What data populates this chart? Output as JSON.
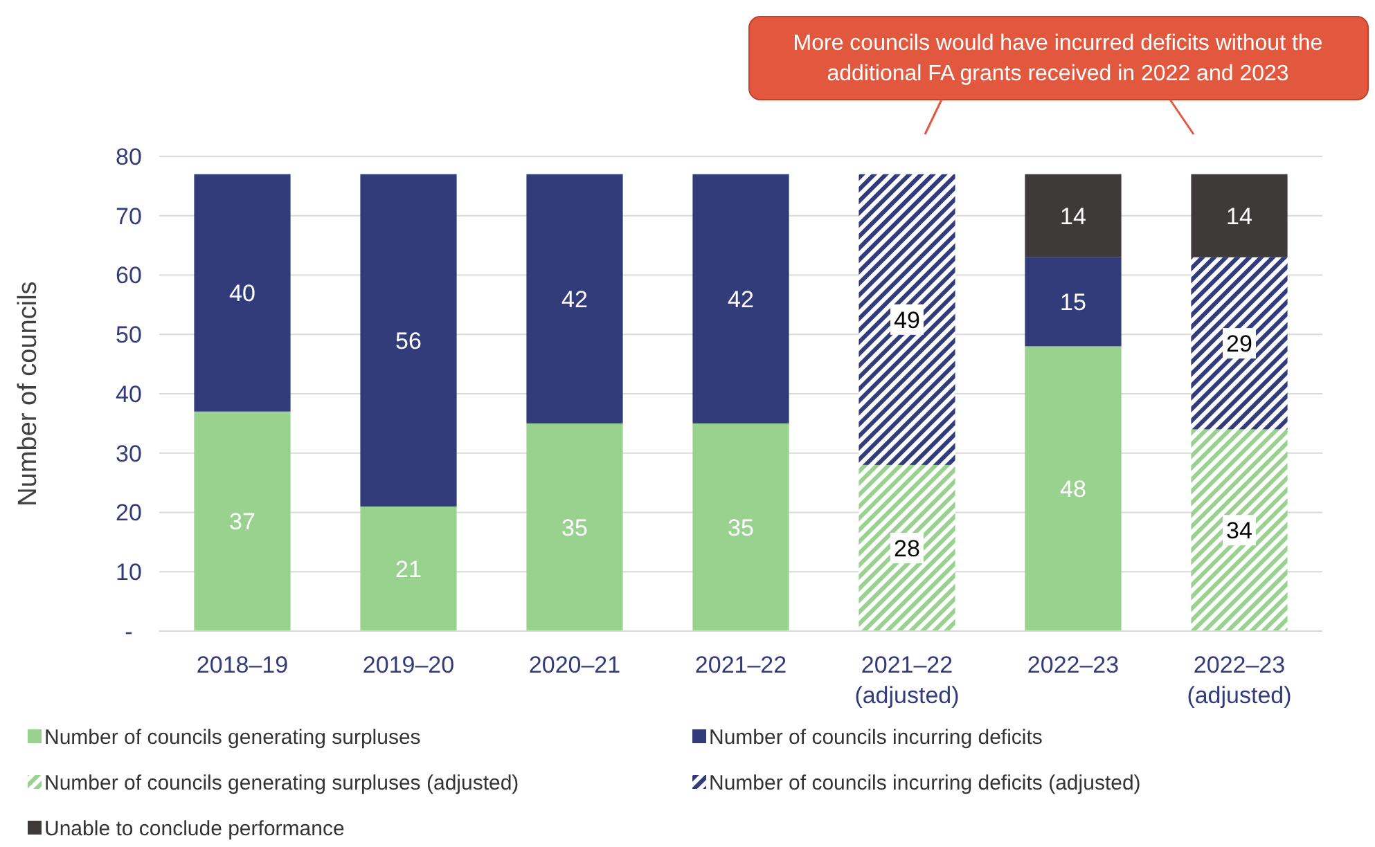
{
  "chart_data": {
    "type": "bar",
    "stacked": true,
    "ylabel": "Number of councils",
    "categories": [
      "2018–19",
      "2019–20",
      "2020–21",
      "2021–22",
      "2021–22\n(adjusted)",
      "2022–23",
      "2022–23\n(adjusted)"
    ],
    "ylim": [
      0,
      80
    ],
    "yticks": [
      {
        "value": 0,
        "label": "-"
      },
      10,
      20,
      30,
      40,
      50,
      60,
      70,
      80
    ],
    "grid": "y",
    "legend": "bottom",
    "data_labels": true,
    "annotations": [
      "More councils would have incurred deficits without the\nadditional FA grants received in 2022 and 2023"
    ],
    "series": [
      {
        "name": "Number of councils generating surpluses",
        "color": "#99d18f",
        "values": [
          37,
          21,
          35,
          35,
          null,
          48,
          null
        ]
      },
      {
        "name": "Number of councils incurring deficits",
        "color": "#333c7b",
        "values": [
          40,
          56,
          42,
          42,
          null,
          15,
          null
        ]
      },
      {
        "name": "Number of councils generating surpluses (adjusted)",
        "color": "#99d18f",
        "line_style": "dashed",
        "values": [
          null,
          null,
          null,
          null,
          28,
          null,
          34
        ]
      },
      {
        "name": "Number of councils incurring deficits (adjusted)",
        "color": "#333c7b",
        "line_style": "dashed",
        "values": [
          null,
          null,
          null,
          null,
          49,
          null,
          29
        ]
      },
      {
        "name": "Unable to conclude performance",
        "color": "#3e3a3a",
        "values": [
          null,
          null,
          null,
          null,
          null,
          14,
          14
        ]
      }
    ]
  }
}
